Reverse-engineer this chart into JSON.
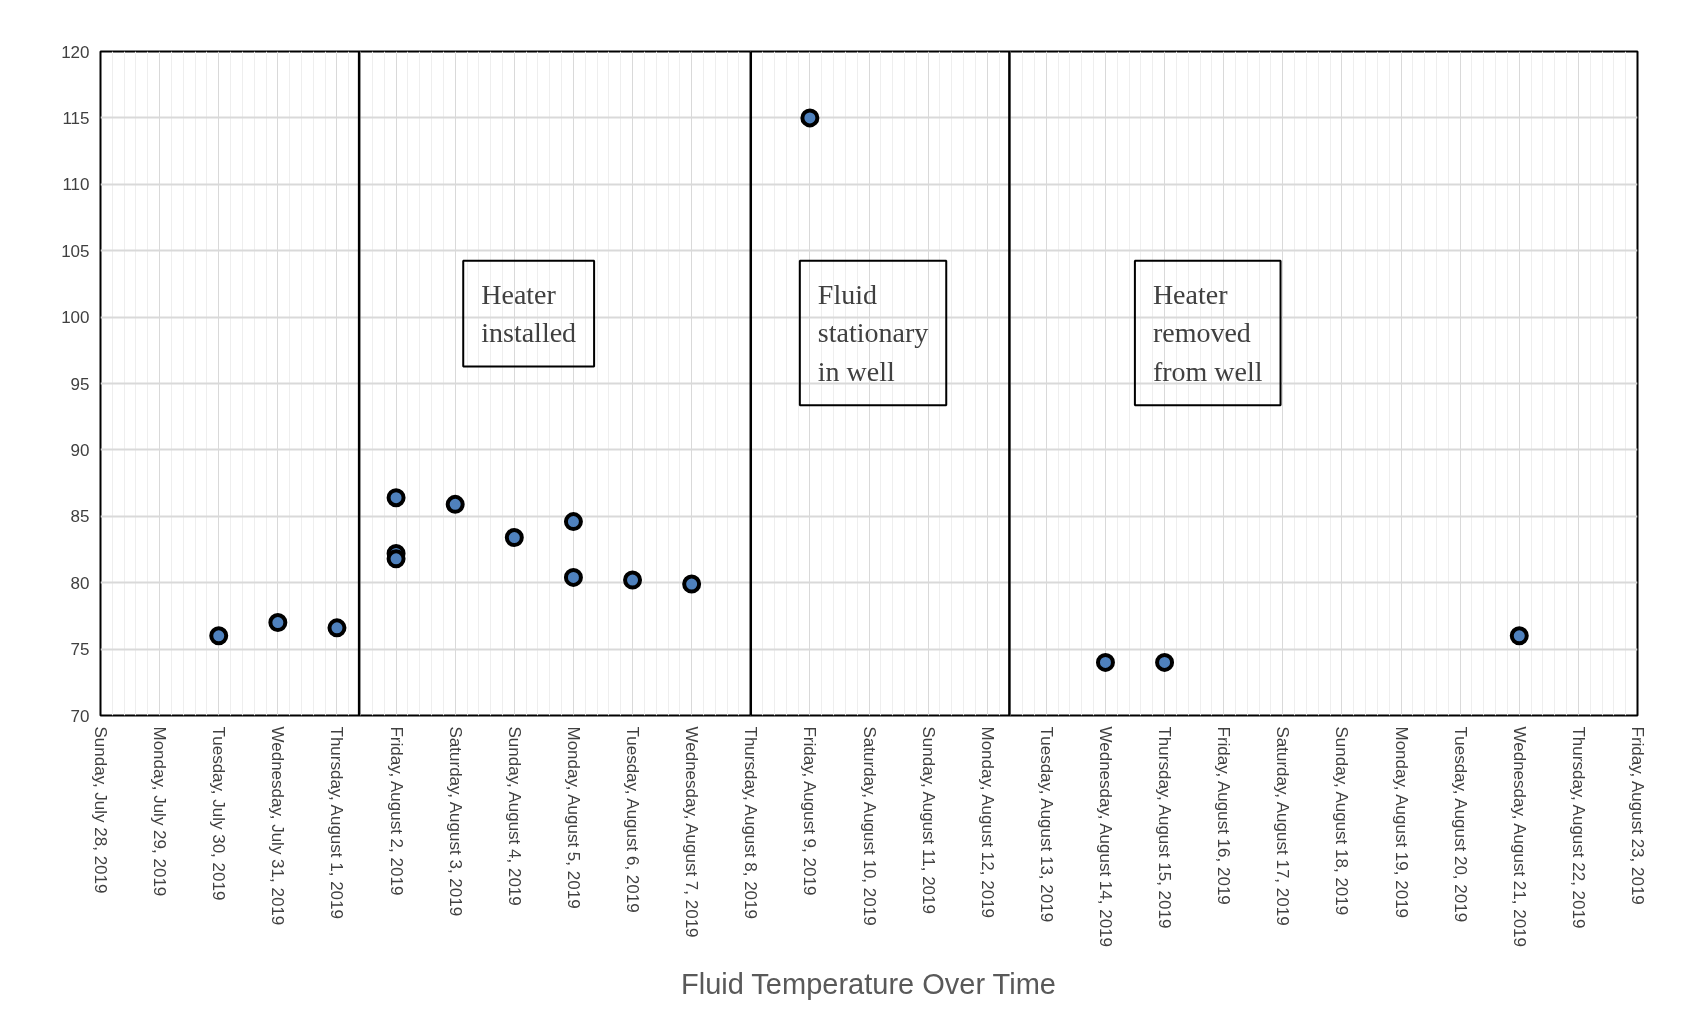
{
  "chart_data": {
    "type": "scatter",
    "title": "Fluid Temperature Over Time",
    "x": [
      "2019-07-30",
      "2019-07-31",
      "2019-08-01",
      "2019-08-02",
      "2019-08-02",
      "2019-08-02",
      "2019-08-03",
      "2019-08-04",
      "2019-08-05",
      "2019-08-05",
      "2019-08-06",
      "2019-08-07",
      "2019-08-09",
      "2019-08-14",
      "2019-08-15",
      "2019-08-21"
    ],
    "series": [
      {
        "color": "#4f81bd",
        "values": [
          76.0,
          77.0,
          76.6,
          86.4,
          82.2,
          81.8,
          85.9,
          83.4,
          84.6,
          80.4,
          80.2,
          79.9,
          115.0,
          74.0,
          74.0,
          76.0
        ]
      }
    ],
    "marker": "circle",
    "grid": true,
    "ylim": [
      70,
      120
    ],
    "yticks": [
      70,
      75,
      80,
      85,
      90,
      95,
      100,
      105,
      110,
      115,
      120
    ],
    "xlim": [
      "2019-07-28",
      "2019-08-23"
    ],
    "xticks": [
      {
        "value": "2019-07-28",
        "label": "Sunday, July 28, 2019"
      },
      {
        "value": "2019-07-29",
        "label": "Monday, July 29, 2019"
      },
      {
        "value": "2019-07-30",
        "label": "Tuesday, July 30, 2019"
      },
      {
        "value": "2019-07-31",
        "label": "Wednesday, July 31, 2019"
      },
      {
        "value": "2019-08-01",
        "label": "Thursday, August 1, 2019"
      },
      {
        "value": "2019-08-02",
        "label": "Friday, August 2, 2019"
      },
      {
        "value": "2019-08-03",
        "label": "Saturday, August 3, 2019"
      },
      {
        "value": "2019-08-04",
        "label": "Sunday, August 4, 2019"
      },
      {
        "value": "2019-08-05",
        "label": "Monday, August 5, 2019"
      },
      {
        "value": "2019-08-06",
        "label": "Tuesday, August 6, 2019"
      },
      {
        "value": "2019-08-07",
        "label": "Wednesday, August 7, 2019"
      },
      {
        "value": "2019-08-08",
        "label": "Thursday, August 8, 2019"
      },
      {
        "value": "2019-08-09",
        "label": "Friday, August 9, 2019"
      },
      {
        "value": "2019-08-10",
        "label": "Saturday, August 10, 2019"
      },
      {
        "value": "2019-08-11",
        "label": "Sunday, August 11, 2019"
      },
      {
        "value": "2019-08-12",
        "label": "Monday, August 12, 2019"
      },
      {
        "value": "2019-08-13",
        "label": "Tuesday, August 13, 2019"
      },
      {
        "value": "2019-08-14",
        "label": "Wednesday, August 14, 2019"
      },
      {
        "value": "2019-08-15",
        "label": "Thursday, August 15, 2019"
      },
      {
        "value": "2019-08-16",
        "label": "Friday, August 16, 2019"
      },
      {
        "value": "2019-08-17",
        "label": "Saturday, August 17, 2019"
      },
      {
        "value": "2019-08-18",
        "label": "Sunday, August 18, 2019"
      },
      {
        "value": "2019-08-19",
        "label": "Monday, August 19, 2019"
      },
      {
        "value": "2019-08-20",
        "label": "Tuesday, August 20, 2019"
      },
      {
        "value": "2019-08-21",
        "label": "Wednesday, August 21, 2019"
      },
      {
        "value": "2019-08-22",
        "label": "Thursday, August 22, 2019"
      },
      {
        "value": "2019-08-23",
        "label": "Friday, August 23, 2019"
      }
    ],
    "ref_lines": [
      {
        "axis": "x",
        "value": "2019-08-01T09:00",
        "color": "#000000"
      },
      {
        "axis": "x",
        "value": "2019-08-08",
        "color": "#000000"
      },
      {
        "axis": "x",
        "value": "2019-08-12T09:00",
        "color": "#000000"
      }
    ],
    "annotations": [
      "Heater\ninstalled",
      "Fluid\nstationary\nin well",
      "Heater\nremoved\nfrom well"
    ]
  }
}
